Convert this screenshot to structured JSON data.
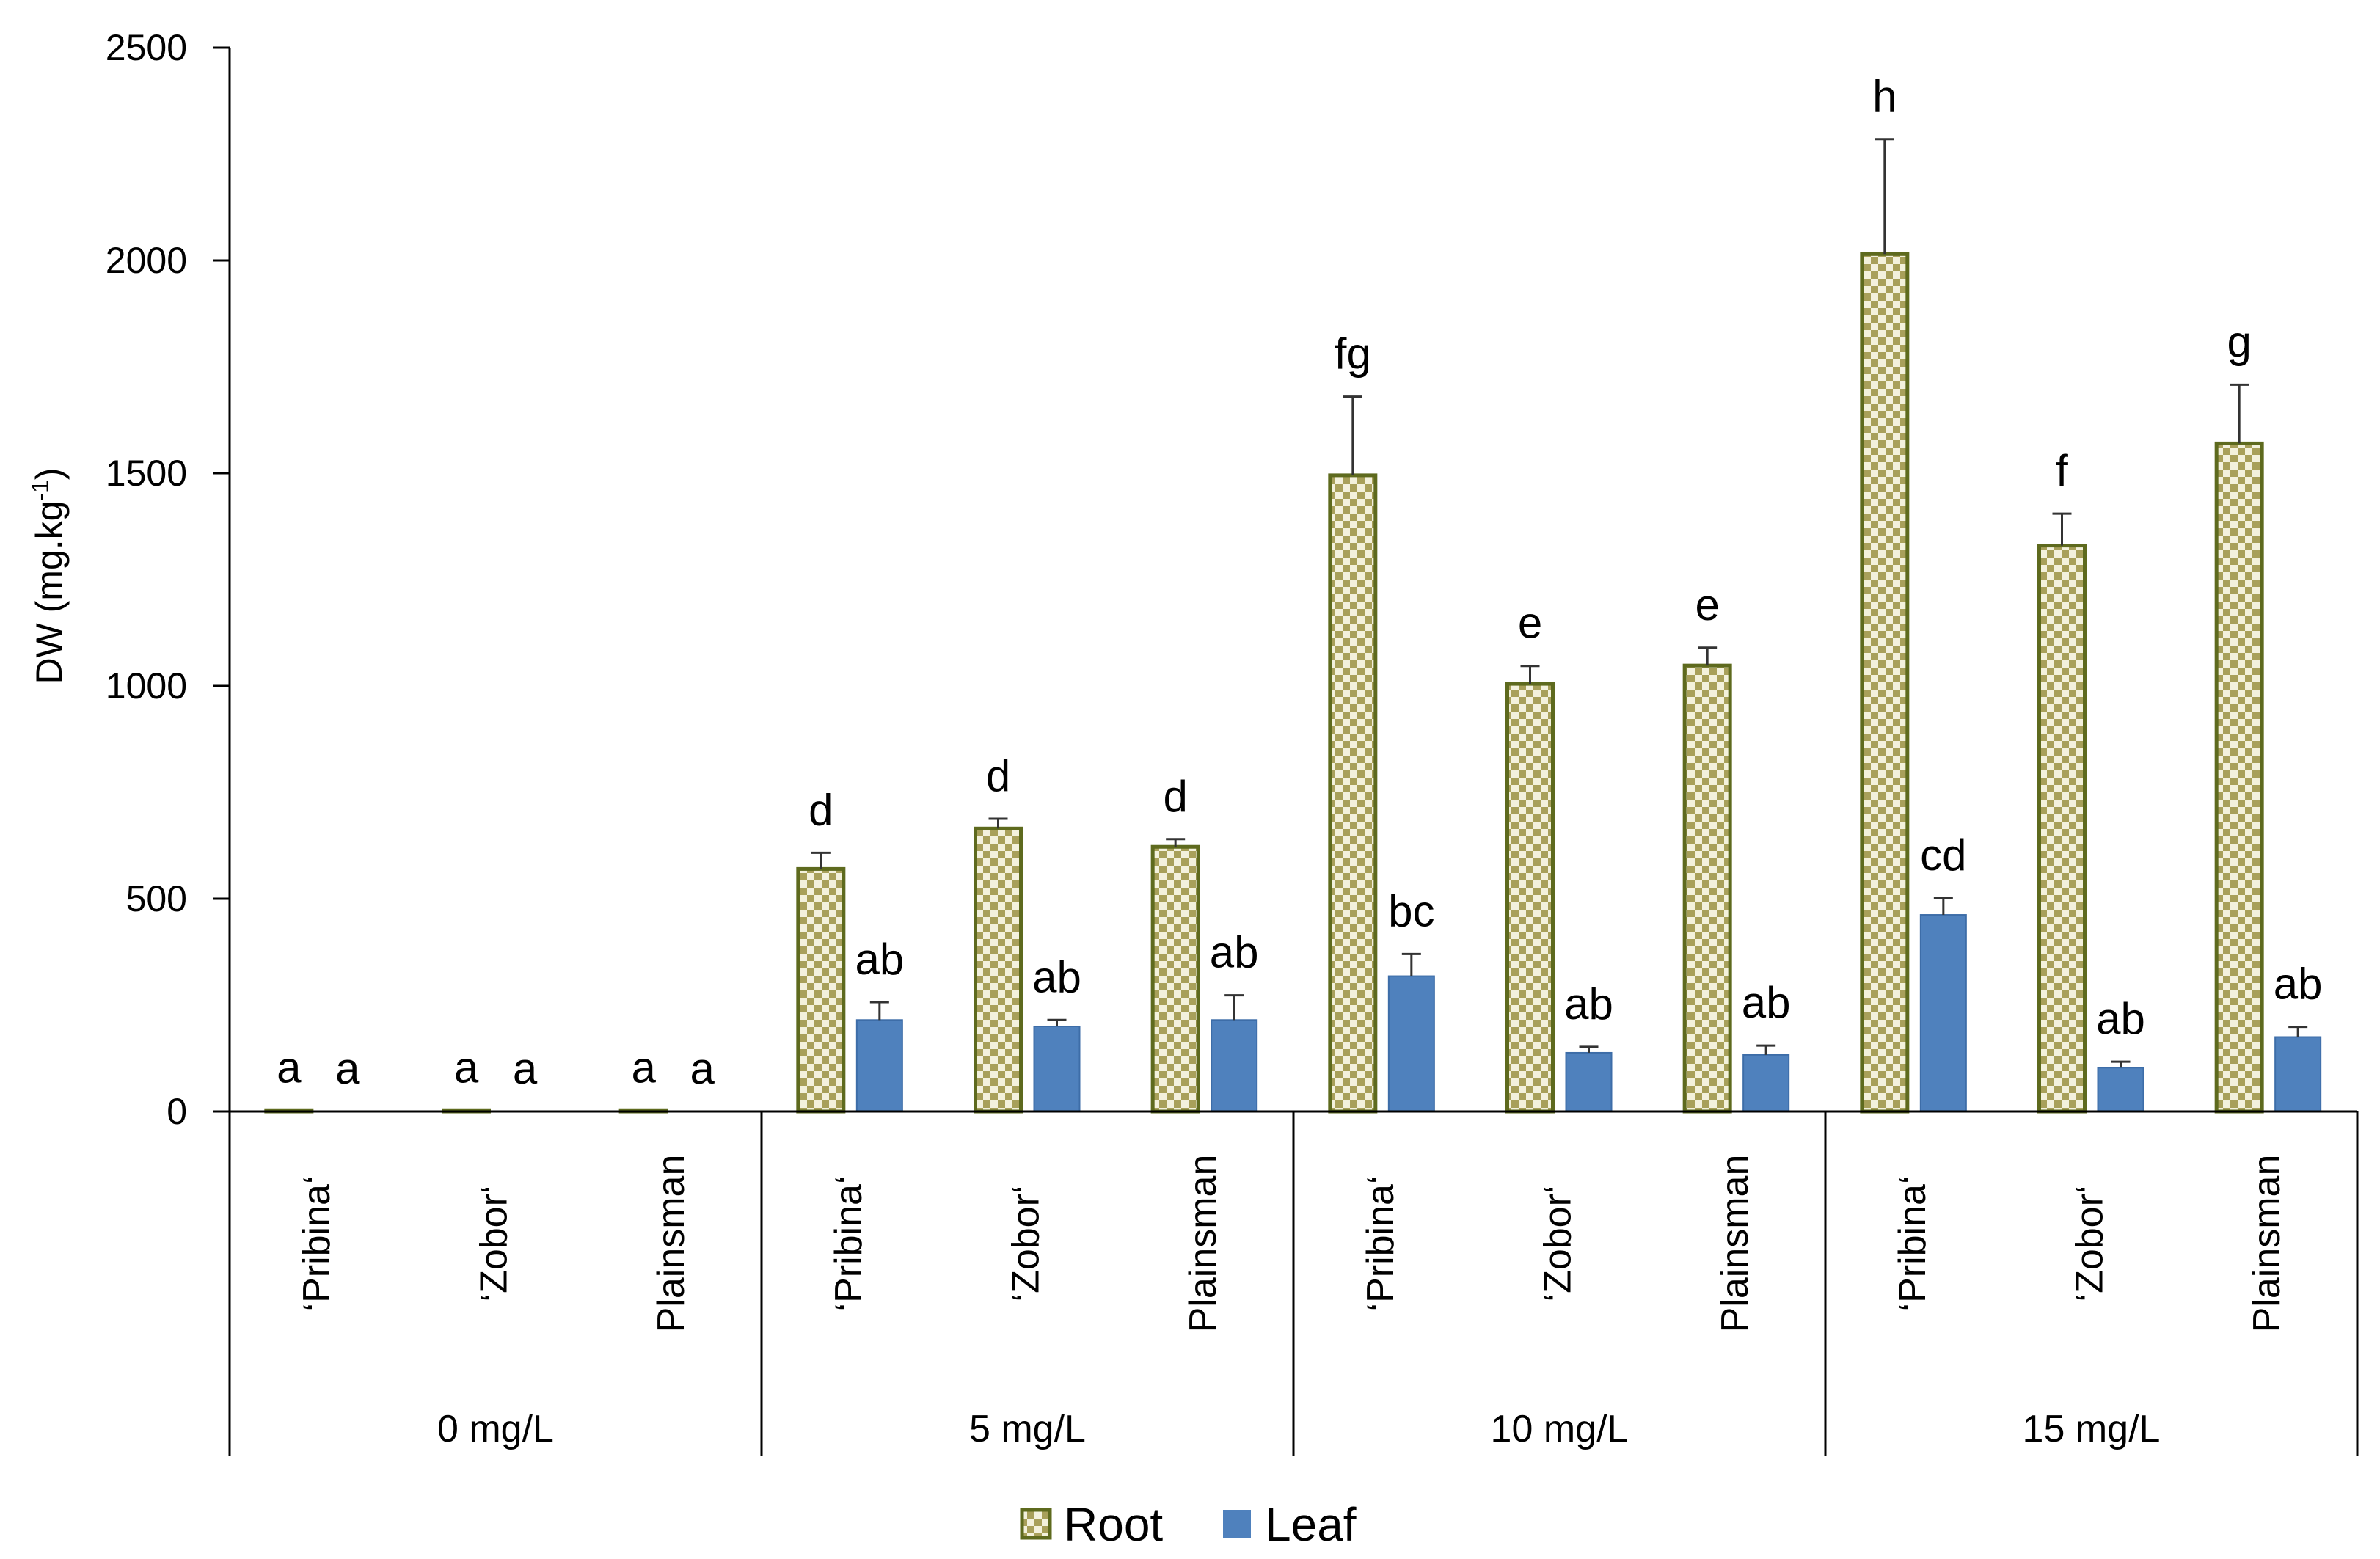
{
  "chart_data": {
    "type": "bar",
    "title": "",
    "xlabel": "",
    "ylabel": {
      "base": "DW (mg.kg",
      "superscript": "-1",
      "suffix": ")"
    },
    "ylim": [
      0,
      2500
    ],
    "yticks": [
      "0",
      "500",
      "1000",
      "1500",
      "2000",
      "2500"
    ],
    "grid": false,
    "legend_position": "bottom",
    "groups": [
      {
        "label": "0 mg/L",
        "cultivars": [
          "‘Pribina‘",
          "‘Zobor‘",
          "Plainsman"
        ]
      },
      {
        "label": "5 mg/L",
        "cultivars": [
          "‘Pribina‘",
          "‘Zobor‘",
          "Plainsman"
        ]
      },
      {
        "label": "10 mg/L",
        "cultivars": [
          "‘Pribina‘",
          "‘Zobor‘",
          "Plainsman"
        ]
      },
      {
        "label": "15 mg/L",
        "cultivars": [
          "‘Pribina‘",
          "‘Zobor‘",
          "Plainsman"
        ]
      }
    ],
    "series": [
      {
        "name": "Root",
        "pattern": "checker",
        "colors": {
          "fill_a": "#a8a05a",
          "fill_b": "#f3f1dc",
          "border": "#5e6a1e"
        },
        "values": [
          3,
          3,
          3,
          570,
          665,
          622,
          1495,
          1005,
          1048,
          2015,
          1330,
          1570
        ],
        "errors": [
          0,
          0,
          0,
          38,
          23,
          18,
          185,
          42,
          42,
          270,
          75,
          138
        ],
        "letters": [
          "a",
          "a",
          "a",
          "d",
          "d",
          "d",
          "fg",
          "e",
          "e",
          "h",
          "f",
          "g"
        ]
      },
      {
        "name": "Leaf",
        "pattern": "solid",
        "colors": {
          "fill": "#4f81bd",
          "border": "#3d6da8"
        },
        "values": [
          0,
          0,
          0,
          215,
          200,
          215,
          318,
          138,
          133,
          462,
          103,
          175
        ],
        "errors": [
          0,
          0,
          0,
          42,
          15,
          58,
          52,
          14,
          22,
          40,
          14,
          24
        ],
        "letters": [
          "a",
          "a",
          "a",
          "ab",
          "ab",
          "ab",
          "bc",
          "ab",
          "ab",
          "cd",
          "ab",
          "ab"
        ]
      }
    ]
  }
}
